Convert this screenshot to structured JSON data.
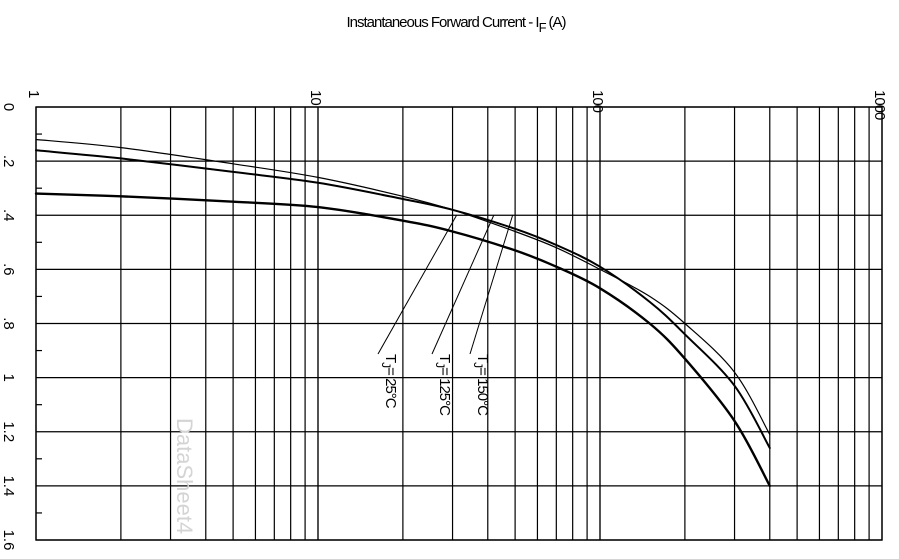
{
  "chart_data": {
    "type": "line",
    "title": "Instantaneous Forward Current - I",
    "title_subscript": "F",
    "title_unit": "(A)",
    "x_axis": {
      "scale": "log",
      "range": [
        1,
        1000
      ],
      "ticks": [
        "1",
        "10",
        "100",
        "1000"
      ]
    },
    "y_axis": {
      "scale": "linear",
      "range": [
        0,
        1.6
      ],
      "ticks": [
        "0",
        ".2",
        ".4",
        ".6",
        ".8",
        "1",
        "1.2",
        "1.4",
        "1.6"
      ]
    },
    "grid": true,
    "series": [
      {
        "name": "TJ = 25°C",
        "label": {
          "prefix": "T",
          "sub": "J",
          "suffix": "=  25°C"
        },
        "x": [
          1,
          2,
          5,
          10,
          20,
          30,
          50,
          70,
          100,
          150,
          200,
          300,
          400
        ],
        "y": [
          0.32,
          0.33,
          0.35,
          0.37,
          0.42,
          0.46,
          0.53,
          0.59,
          0.67,
          0.8,
          0.93,
          1.16,
          1.4
        ]
      },
      {
        "name": "TJ = 125°C",
        "label": {
          "prefix": "T",
          "sub": "J",
          "suffix": "= 125°C"
        },
        "x": [
          1,
          2,
          5,
          10,
          20,
          30,
          50,
          70,
          100,
          150,
          200,
          300,
          400
        ],
        "y": [
          0.16,
          0.19,
          0.24,
          0.28,
          0.34,
          0.38,
          0.45,
          0.51,
          0.59,
          0.72,
          0.84,
          1.03,
          1.26
        ]
      },
      {
        "name": "TJ = 150°C",
        "label": {
          "prefix": "T",
          "sub": "J",
          "suffix": "= 150°C"
        },
        "x": [
          1,
          2,
          5,
          10,
          20,
          30,
          50,
          70,
          100,
          150,
          200,
          300,
          400
        ],
        "y": [
          0.12,
          0.15,
          0.21,
          0.26,
          0.33,
          0.38,
          0.46,
          0.52,
          0.6,
          0.7,
          0.8,
          0.98,
          1.21
        ]
      }
    ],
    "watermark": "DataSheet4"
  }
}
